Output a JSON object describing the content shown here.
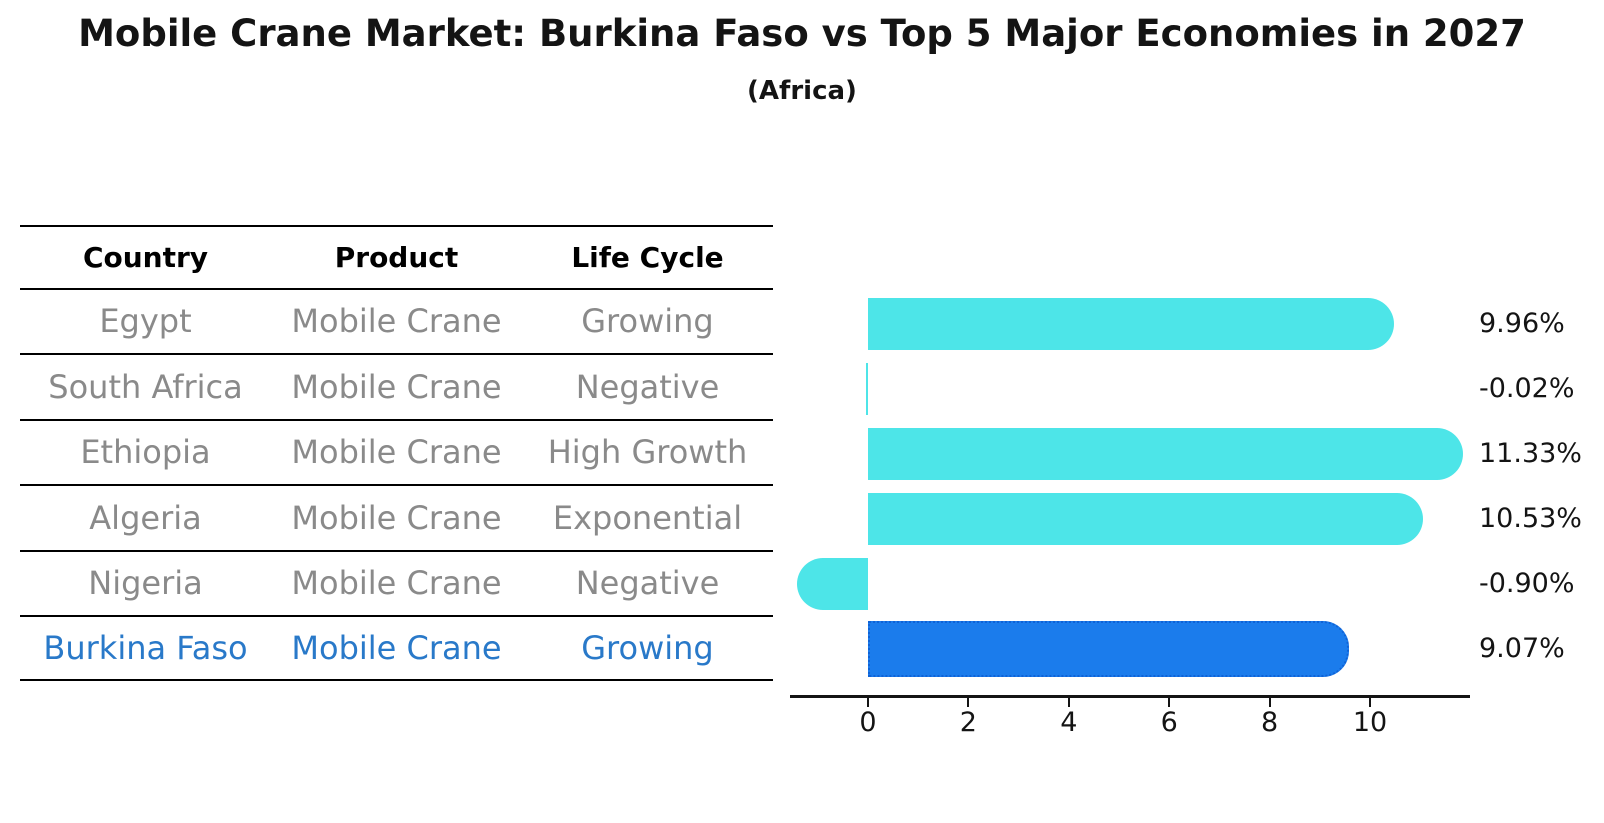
{
  "title": "Mobile Crane Market: Burkina Faso vs Top 5 Major Economies in 2027",
  "subtitle": "(Africa)",
  "table": {
    "headers": [
      "Country",
      "Product",
      "Life Cycle"
    ],
    "rows": [
      {
        "country": "Egypt",
        "product": "Mobile Crane",
        "life_cycle": "Growing",
        "highlight": false
      },
      {
        "country": "South Africa",
        "product": "Mobile Crane",
        "life_cycle": "Negative",
        "highlight": false
      },
      {
        "country": "Ethiopia",
        "product": "Mobile Crane",
        "life_cycle": "High Growth",
        "highlight": false
      },
      {
        "country": "Algeria",
        "product": "Mobile Crane",
        "life_cycle": "Exponential",
        "highlight": false
      },
      {
        "country": "Nigeria",
        "product": "Mobile Crane",
        "life_cycle": "Negative",
        "highlight": false
      },
      {
        "country": "Burkina Faso",
        "product": "Mobile Crane",
        "life_cycle": "Growing",
        "highlight": true
      }
    ]
  },
  "chart_data": {
    "type": "bar",
    "orientation": "horizontal",
    "title": "Mobile Crane Market: Burkina Faso vs Top 5 Major Economies in 2027",
    "subtitle": "(Africa)",
    "categories": [
      "Egypt",
      "South Africa",
      "Ethiopia",
      "Algeria",
      "Nigeria",
      "Burkina Faso"
    ],
    "values": [
      9.96,
      -0.02,
      11.33,
      10.53,
      -0.9,
      9.07
    ],
    "value_labels": [
      "9.96%",
      "-0.02%",
      "11.33%",
      "10.53%",
      "-0.90%",
      "9.07%"
    ],
    "unit": "%",
    "xticks": [
      0,
      2,
      4,
      6,
      8,
      10
    ],
    "xtick_labels": [
      "0",
      "2",
      "4",
      "6",
      "8",
      "10"
    ],
    "xlim": [
      -1.55,
      12.0
    ],
    "grid": false,
    "legend": false,
    "highlight_index": 5
  },
  "colors": {
    "bar": "#4DE5E8",
    "highlight_bar": "#1B7CEC",
    "highlight_bar_border": "#0F62D6",
    "highlight_text": "#2979C9",
    "table_text": "#8A8A8A",
    "header_text": "#000000",
    "rule": "#000000",
    "axis": "#141414"
  }
}
